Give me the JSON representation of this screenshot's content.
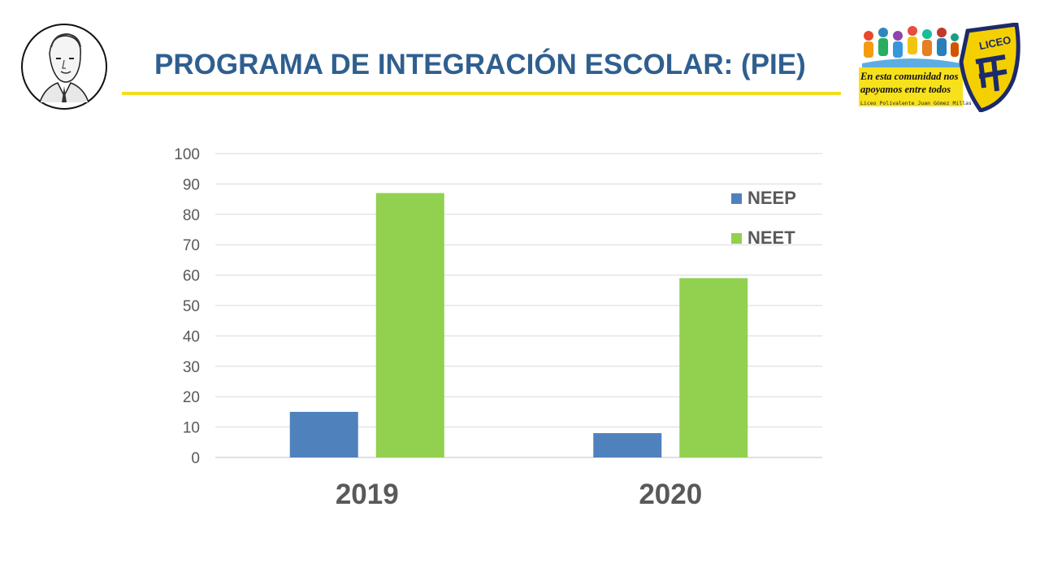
{
  "header": {
    "title": "PROGRAMA DE INTEGRACIÓN ESCOLAR: (PIE)"
  },
  "logo": {
    "badge_text": "LICEO",
    "banner_line1": "En esta comunidad nos",
    "banner_line2": "apoyamos entre todos",
    "banner_sub": "Liceo Polivalente Juan Gómez Millas"
  },
  "colors": {
    "title": "#2f5f8f",
    "rule": "#f2dd1f",
    "neep": "#4f81bd",
    "neet": "#92d050",
    "axis_text": "#595959",
    "grid": "#d9d9d9"
  },
  "chart_data": {
    "type": "bar",
    "categories": [
      "2019",
      "2020"
    ],
    "series": [
      {
        "name": "NEEP",
        "values": [
          15,
          8
        ]
      },
      {
        "name": "NEET",
        "values": [
          87,
          59
        ]
      }
    ],
    "ylim": [
      0,
      100
    ],
    "yticks": [
      0,
      10,
      20,
      30,
      40,
      50,
      60,
      70,
      80,
      90,
      100
    ],
    "grid": true,
    "legend_position": "top-right"
  }
}
